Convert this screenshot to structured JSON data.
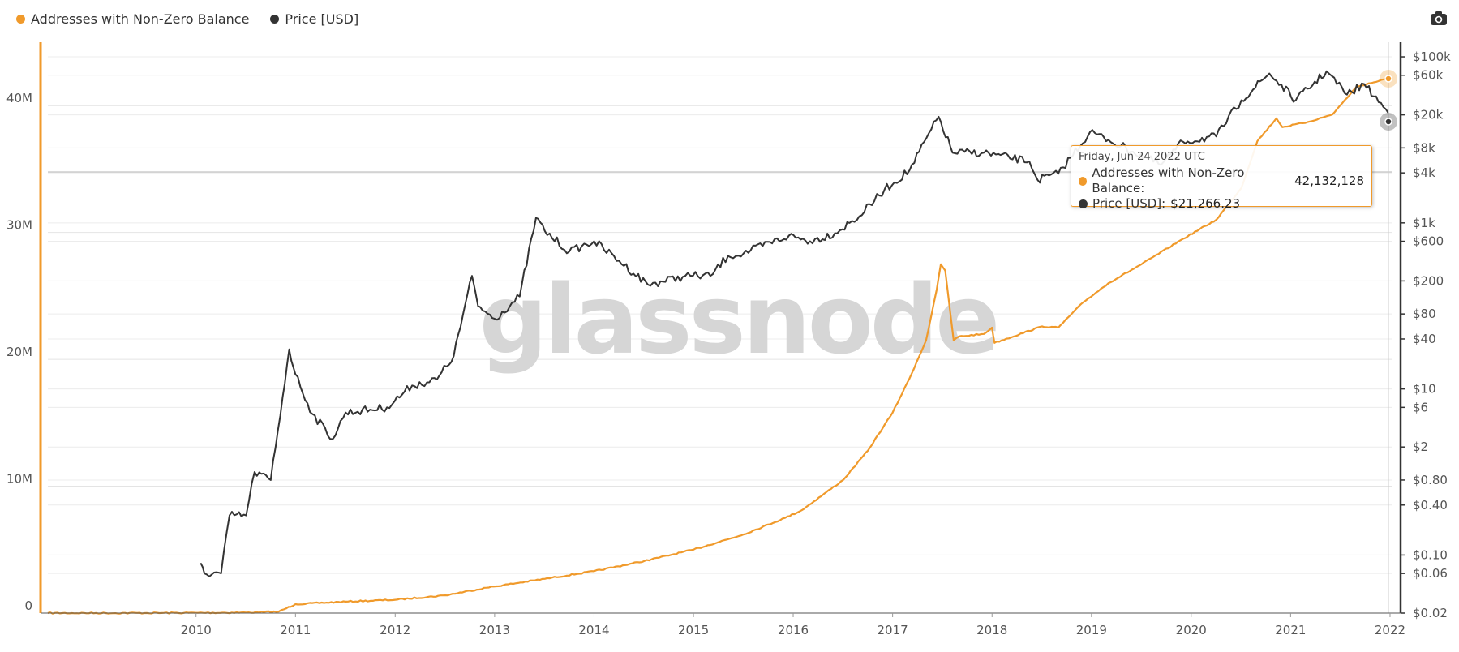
{
  "legend": [
    {
      "name": "Addresses with Non-Zero Balance",
      "color": "#f09a2b"
    },
    {
      "name": "Price [USD]",
      "color": "#333333"
    }
  ],
  "watermark": "glassnode",
  "camera_icon": "camera-icon",
  "tooltip": {
    "date": "Friday, Jun 24 2022 UTC",
    "addresses_label": "Addresses with Non-Zero Balance:",
    "addresses_value": "42,132,128",
    "price_label": "Price [USD]:",
    "price_value": "$21,266.23"
  },
  "chart_data": {
    "type": "line",
    "x_ticks": [
      "2010",
      "2011",
      "2012",
      "2013",
      "2014",
      "2015",
      "2016",
      "2017",
      "2018",
      "2019",
      "2020",
      "2021",
      "2022"
    ],
    "left_axis": {
      "ticks": [
        "0",
        "10M",
        "20M",
        "30M",
        "40M"
      ],
      "range": [
        0,
        45000000
      ],
      "color": "#f09a2b"
    },
    "right_axis": {
      "scale": "log",
      "ticks": [
        "$100k",
        "$60k",
        "$20k",
        "$8k",
        "$4k",
        "$1k",
        "$600",
        "$200",
        "$80",
        "$40",
        "$10",
        "$6",
        "$2",
        "$0.80",
        "$0.40",
        "$0.10",
        "$0.06",
        "$0.02"
      ],
      "range": [
        0.02,
        150000
      ]
    },
    "grid": true,
    "legend_position": "top-left",
    "series": [
      {
        "name": "Addresses with Non-Zero Balance",
        "axis": "left",
        "color": "#f09a2b",
        "points": [
          [
            "2009-01-03",
            0
          ],
          [
            "2010-01-01",
            5000
          ],
          [
            "2010-07-01",
            20000
          ],
          [
            "2011-01-01",
            40000
          ],
          [
            "2011-05-01",
            120000
          ],
          [
            "2011-07-01",
            700000
          ],
          [
            "2012-01-01",
            900000
          ],
          [
            "2012-07-01",
            1050000
          ],
          [
            "2013-01-01",
            1400000
          ],
          [
            "2013-06-01",
            2000000
          ],
          [
            "2014-01-01",
            2700000
          ],
          [
            "2014-07-01",
            3300000
          ],
          [
            "2015-01-01",
            4100000
          ],
          [
            "2015-07-01",
            5000000
          ],
          [
            "2016-01-01",
            6200000
          ],
          [
            "2016-06-01",
            7500000
          ],
          [
            "2016-08-01",
            8100000
          ],
          [
            "2017-01-01",
            10500000
          ],
          [
            "2017-04-01",
            12800000
          ],
          [
            "2017-07-01",
            15800000
          ],
          [
            "2017-09-01",
            18500000
          ],
          [
            "2017-11-01",
            21500000
          ],
          [
            "2017-12-10",
            25500000
          ],
          [
            "2017-12-25",
            27500000
          ],
          [
            "2018-01-10",
            27000000
          ],
          [
            "2018-02-10",
            21500000
          ],
          [
            "2018-03-01",
            21800000
          ],
          [
            "2018-06-01",
            22000000
          ],
          [
            "2018-07-01",
            22500000
          ],
          [
            "2018-07-10",
            21300000
          ],
          [
            "2019-01-01",
            22600000
          ],
          [
            "2019-03-01",
            22500000
          ],
          [
            "2019-06-01",
            24500000
          ],
          [
            "2019-09-01",
            26000000
          ],
          [
            "2020-01-01",
            27500000
          ],
          [
            "2020-06-01",
            29500000
          ],
          [
            "2020-10-01",
            31000000
          ],
          [
            "2021-01-01",
            33500000
          ],
          [
            "2021-03-01",
            37200000
          ],
          [
            "2021-05-10",
            39000000
          ],
          [
            "2021-06-01",
            38300000
          ],
          [
            "2021-09-01",
            38700000
          ],
          [
            "2021-12-01",
            39300000
          ],
          [
            "2022-03-01",
            41500000
          ],
          [
            "2022-06-24",
            42132128
          ]
        ]
      },
      {
        "name": "Price [USD]",
        "axis": "right",
        "color": "#333333",
        "points": [
          [
            "2010-07-18",
            0.08
          ],
          [
            "2010-08-01",
            0.06
          ],
          [
            "2010-10-01",
            0.06
          ],
          [
            "2010-11-01",
            0.3
          ],
          [
            "2011-01-01",
            0.3
          ],
          [
            "2011-02-01",
            1.0
          ],
          [
            "2011-04-01",
            0.8
          ],
          [
            "2011-05-15",
            8
          ],
          [
            "2011-06-08",
            30
          ],
          [
            "2011-07-01",
            15
          ],
          [
            "2011-09-01",
            5
          ],
          [
            "2011-11-15",
            2.5
          ],
          [
            "2012-01-01",
            5.2
          ],
          [
            "2012-06-01",
            6
          ],
          [
            "2012-09-01",
            11
          ],
          [
            "2012-12-01",
            13
          ],
          [
            "2013-02-01",
            25
          ],
          [
            "2013-04-09",
            230
          ],
          [
            "2013-05-01",
            100
          ],
          [
            "2013-07-01",
            70
          ],
          [
            "2013-10-01",
            130
          ],
          [
            "2013-11-30",
            1150
          ],
          [
            "2014-01-01",
            800
          ],
          [
            "2014-04-01",
            450
          ],
          [
            "2014-07-01",
            600
          ],
          [
            "2014-10-01",
            350
          ],
          [
            "2015-01-15",
            180
          ],
          [
            "2015-06-01",
            230
          ],
          [
            "2015-09-01",
            230
          ],
          [
            "2015-11-05",
            400
          ],
          [
            "2016-01-01",
            430
          ],
          [
            "2016-06-15",
            700
          ],
          [
            "2016-09-01",
            600
          ],
          [
            "2016-12-01",
            750
          ],
          [
            "2017-03-01",
            1200
          ],
          [
            "2017-06-01",
            2500
          ],
          [
            "2017-09-01",
            4300
          ],
          [
            "2017-12-17",
            19000
          ],
          [
            "2018-02-06",
            7000
          ],
          [
            "2018-06-01",
            7000
          ],
          [
            "2018-11-15",
            5500
          ],
          [
            "2018-12-15",
            3300
          ],
          [
            "2019-03-01",
            3900
          ],
          [
            "2019-06-26",
            12500
          ],
          [
            "2019-09-01",
            10000
          ],
          [
            "2019-12-01",
            7200
          ],
          [
            "2020-03-12",
            5000
          ],
          [
            "2020-06-01",
            9500
          ],
          [
            "2020-10-01",
            11000
          ],
          [
            "2021-01-01",
            30000
          ],
          [
            "2021-04-14",
            63000
          ],
          [
            "2021-07-20",
            30000
          ],
          [
            "2021-11-10",
            67000
          ],
          [
            "2022-01-24",
            35000
          ],
          [
            "2022-03-28",
            47000
          ],
          [
            "2022-06-24",
            21266.23
          ]
        ]
      }
    ]
  }
}
